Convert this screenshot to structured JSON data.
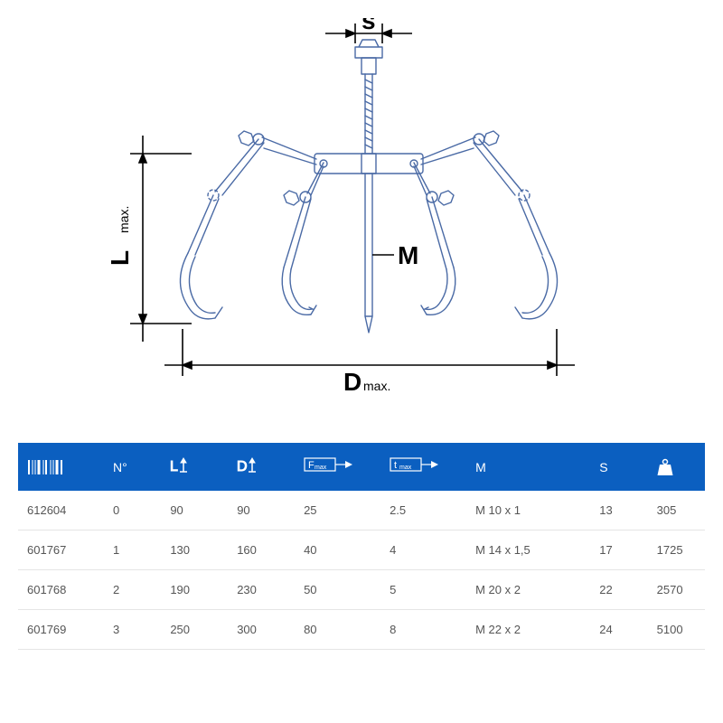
{
  "diagram": {
    "stroke_color": "#4a6aa5",
    "stroke_width": 1.4,
    "label_color": "#000000",
    "label_fontsize": 28,
    "subscript_fontsize": 14,
    "labels": {
      "S": "s",
      "M": "M",
      "L": "L",
      "L_sub": "max.",
      "D": "D",
      "D_sub": "max."
    }
  },
  "table": {
    "header_bg": "#0b5fc0",
    "header_fg": "#ffffff",
    "row_border": "#e5e5e5",
    "cell_color": "#555555",
    "headers": {
      "no": "N°",
      "l": "L",
      "d": "D",
      "f": "F",
      "f_sub": "max",
      "t": "t",
      "t_sub": "max",
      "m": "M",
      "s": "S"
    },
    "columns": [
      "barcode",
      "no",
      "l",
      "d",
      "f",
      "t",
      "m",
      "s",
      "weight"
    ],
    "rows": [
      {
        "barcode": "612604",
        "no": "0",
        "l": "90",
        "d": "90",
        "f": "25",
        "t": "2.5",
        "m": "M 10 x 1",
        "s": "13",
        "weight": "305"
      },
      {
        "barcode": "601767",
        "no": "1",
        "l": "130",
        "d": "160",
        "f": "40",
        "t": "4",
        "m": "M 14 x 1,5",
        "s": "17",
        "weight": "1725"
      },
      {
        "barcode": "601768",
        "no": "2",
        "l": "190",
        "d": "230",
        "f": "50",
        "t": "5",
        "m": "M 20 x 2",
        "s": "22",
        "weight": "2570"
      },
      {
        "barcode": "601769",
        "no": "3",
        "l": "250",
        "d": "300",
        "f": "80",
        "t": "8",
        "m": "M 22 x 2",
        "s": "24",
        "weight": "5100"
      }
    ]
  }
}
